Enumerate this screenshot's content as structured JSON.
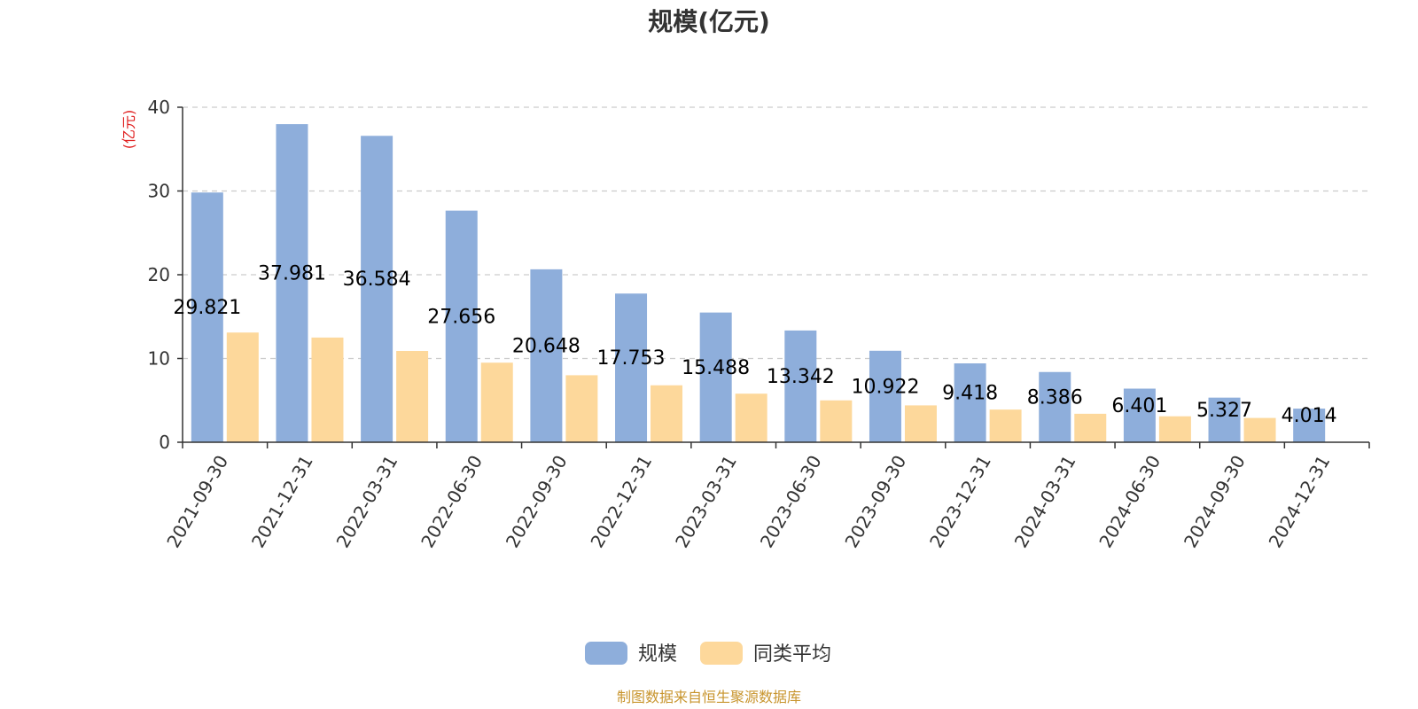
{
  "chart_data": {
    "type": "bar",
    "title": "规模(亿元)",
    "ylabel": "(亿元)",
    "xlabel": "",
    "ylim": [
      0,
      40
    ],
    "yticks": [
      0,
      10,
      20,
      30,
      40
    ],
    "grid": true,
    "legend_position": "bottom",
    "categories": [
      "2021-09-30",
      "2021-12-31",
      "2022-03-31",
      "2022-06-30",
      "2022-09-30",
      "2022-12-31",
      "2023-03-31",
      "2023-06-30",
      "2023-09-30",
      "2023-12-31",
      "2024-03-31",
      "2024-06-30",
      "2024-09-30",
      "2024-12-31"
    ],
    "series": [
      {
        "name": "规模",
        "color": "#8eaedb",
        "values": [
          29.821,
          37.981,
          36.584,
          27.656,
          20.648,
          17.753,
          15.488,
          13.342,
          10.922,
          9.418,
          8.386,
          6.401,
          5.327,
          4.014
        ],
        "labels": [
          "29.821",
          "37.981",
          "36.584",
          "27.656",
          "20.648",
          "17.753",
          "15.488",
          "13.342",
          "10.922",
          "9.418",
          "8.386",
          "6.401",
          "5.327",
          "4.014"
        ]
      },
      {
        "name": "同类平均",
        "color": "#fdd89b",
        "values": [
          13.1,
          12.5,
          10.9,
          9.5,
          8.0,
          6.8,
          5.8,
          5.0,
          4.4,
          3.9,
          3.4,
          3.1,
          2.9,
          null
        ]
      }
    ],
    "source": "制图数据来自恒生聚源数据库"
  }
}
